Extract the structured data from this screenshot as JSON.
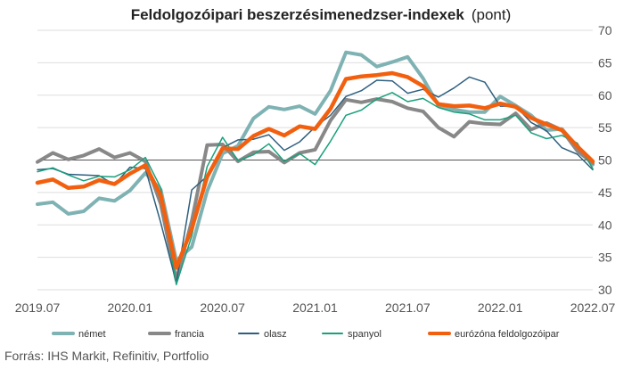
{
  "chart_data": {
    "type": "line",
    "title": "Feldolgozóipari beszerzésimenedzser-indexek",
    "title_unit": "(pont)",
    "source": "Forrás: IHS Markit, Refinitiv, Portfolio",
    "x_ticks": [
      "2019.07",
      "2020.01",
      "2020.07",
      "2021.01",
      "2021.07",
      "2022.01",
      "2022.07"
    ],
    "y_ticks": [
      30,
      35,
      40,
      45,
      50,
      55,
      60,
      65,
      70
    ],
    "ylim": [
      30,
      70
    ],
    "grid": "horizontal",
    "reference_line": 50,
    "legend_position": "bottom",
    "x": [
      "2019.07",
      "2019.08",
      "2019.09",
      "2019.10",
      "2019.11",
      "2019.12",
      "2020.01",
      "2020.02",
      "2020.03",
      "2020.04",
      "2020.05",
      "2020.06",
      "2020.07",
      "2020.08",
      "2020.09",
      "2020.10",
      "2020.11",
      "2020.12",
      "2021.01",
      "2021.02",
      "2021.03",
      "2021.04",
      "2021.05",
      "2021.06",
      "2021.07",
      "2021.08",
      "2021.09",
      "2021.10",
      "2021.11",
      "2021.12",
      "2022.01",
      "2022.02",
      "2022.03",
      "2022.04",
      "2022.05",
      "2022.06",
      "2022.07"
    ],
    "series": [
      {
        "name": "német",
        "color": "#7fb2b3",
        "width": 4,
        "values": [
          43.2,
          43.5,
          41.7,
          42.1,
          44.1,
          43.7,
          45.3,
          48.0,
          45.4,
          34.5,
          36.6,
          45.2,
          51.0,
          52.2,
          56.4,
          58.2,
          57.8,
          58.3,
          57.1,
          60.7,
          66.6,
          66.2,
          64.4,
          65.1,
          65.9,
          62.6,
          58.4,
          57.8,
          57.4,
          57.4,
          59.8,
          58.4,
          56.9,
          54.6,
          54.8,
          52.0,
          49.3
        ]
      },
      {
        "name": "francia",
        "color": "#888888",
        "width": 4,
        "values": [
          49.7,
          51.1,
          50.1,
          50.7,
          51.7,
          50.4,
          51.1,
          49.8,
          43.2,
          31.5,
          40.6,
          52.3,
          52.4,
          49.8,
          51.2,
          51.3,
          49.6,
          51.1,
          51.6,
          56.1,
          59.3,
          58.9,
          59.4,
          59.0,
          58.0,
          57.5,
          55.0,
          53.6,
          55.9,
          55.6,
          55.5,
          57.2,
          54.7,
          55.7,
          54.6,
          51.4,
          49.5
        ]
      },
      {
        "name": "olasz",
        "color": "#2e5f7f",
        "width": 1.5,
        "values": [
          48.5,
          48.7,
          47.8,
          47.7,
          47.6,
          46.2,
          48.9,
          48.7,
          40.3,
          31.1,
          45.4,
          47.5,
          51.9,
          53.1,
          53.2,
          53.9,
          51.5,
          52.8,
          55.1,
          56.9,
          59.8,
          60.7,
          62.3,
          62.2,
          60.3,
          60.9,
          59.7,
          61.1,
          62.8,
          62.0,
          58.3,
          58.3,
          55.8,
          54.5,
          51.9,
          50.9,
          48.5
        ]
      },
      {
        "name": "spanyol",
        "color": "#1aa07c",
        "width": 1.5,
        "values": [
          48.2,
          48.8,
          47.7,
          46.8,
          47.5,
          47.4,
          48.5,
          50.4,
          45.7,
          30.8,
          38.3,
          49.0,
          53.5,
          49.9,
          50.8,
          52.5,
          49.8,
          51.0,
          49.3,
          52.9,
          56.9,
          57.7,
          59.4,
          60.4,
          59.0,
          59.5,
          58.1,
          57.4,
          57.1,
          56.2,
          56.2,
          56.9,
          54.2,
          53.3,
          53.8,
          52.6,
          48.7
        ]
      },
      {
        "name": "eurózóna feldolgozóipar",
        "color": "#f2600f",
        "width": 4.5,
        "values": [
          46.5,
          47.0,
          45.7,
          45.9,
          46.9,
          46.3,
          47.9,
          49.2,
          44.5,
          33.4,
          39.4,
          47.4,
          51.8,
          51.7,
          53.7,
          54.8,
          53.8,
          55.2,
          54.8,
          57.9,
          62.5,
          62.9,
          63.1,
          63.4,
          62.8,
          61.4,
          58.6,
          58.3,
          58.4,
          58.0,
          58.7,
          58.2,
          56.5,
          55.5,
          54.6,
          52.1,
          49.8
        ]
      }
    ]
  }
}
